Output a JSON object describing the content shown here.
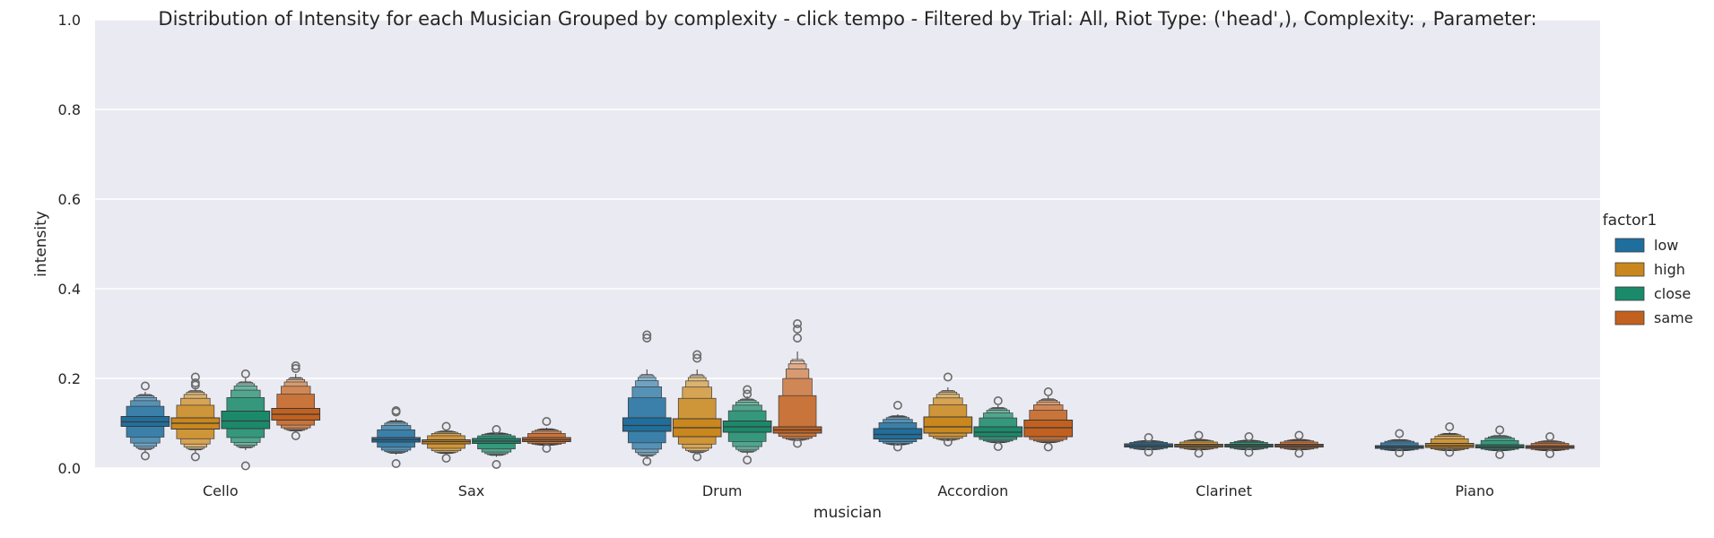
{
  "chart_data": {
    "type": "boxen",
    "title": "Distribution of Intensity for each Musician Grouped by complexity - click tempo - Filtered by Trial: All, Riot Type: ('head',), Complexity: , Parameter:",
    "xlabel": "musician",
    "ylabel": "intensity",
    "ylim": [
      0,
      1.0
    ],
    "yticks": [
      0.0,
      0.2,
      0.4,
      0.6,
      0.8,
      1.0
    ],
    "ytick_labels": [
      "0.0",
      "0.2",
      "0.4",
      "0.6",
      "0.8",
      "1.0"
    ],
    "grid": true,
    "legend_title": "factor1",
    "legend_position": "right",
    "categories": [
      "Cello",
      "Sax",
      "Drum",
      "Accordion",
      "Clarinet",
      "Piano"
    ],
    "series": [
      {
        "name": "low",
        "color": "#1f6f9e",
        "stats": [
          {
            "median": 0.103,
            "q1": 0.093,
            "q3": 0.115,
            "min": 0.035,
            "max": 0.17,
            "outliers": [
              0.183,
              0.027
            ]
          },
          {
            "median": 0.063,
            "q1": 0.058,
            "q3": 0.068,
            "min": 0.03,
            "max": 0.11,
            "outliers": [
              0.125,
              0.128,
              0.01
            ]
          },
          {
            "median": 0.095,
            "q1": 0.082,
            "q3": 0.112,
            "min": 0.02,
            "max": 0.22,
            "outliers": [
              0.29,
              0.297,
              0.015
            ]
          },
          {
            "median": 0.075,
            "q1": 0.065,
            "q3": 0.088,
            "min": 0.05,
            "max": 0.12,
            "outliers": [
              0.14,
              0.047
            ]
          },
          {
            "median": 0.05,
            "q1": 0.047,
            "q3": 0.054,
            "min": 0.04,
            "max": 0.062,
            "outliers": [
              0.068,
              0.036
            ]
          },
          {
            "median": 0.047,
            "q1": 0.044,
            "q3": 0.05,
            "min": 0.038,
            "max": 0.065,
            "outliers": [
              0.077,
              0.034
            ]
          }
        ]
      },
      {
        "name": "high",
        "color": "#c9871e",
        "stats": [
          {
            "median": 0.1,
            "q1": 0.087,
            "q3": 0.112,
            "min": 0.035,
            "max": 0.18,
            "outliers": [
              0.203,
              0.19,
              0.185,
              0.025
            ]
          },
          {
            "median": 0.059,
            "q1": 0.054,
            "q3": 0.063,
            "min": 0.03,
            "max": 0.085,
            "outliers": [
              0.093,
              0.022
            ]
          },
          {
            "median": 0.09,
            "q1": 0.07,
            "q3": 0.11,
            "min": 0.03,
            "max": 0.22,
            "outliers": [
              0.253,
              0.245,
              0.025
            ]
          },
          {
            "median": 0.092,
            "q1": 0.078,
            "q3": 0.114,
            "min": 0.06,
            "max": 0.18,
            "outliers": [
              0.203,
              0.058
            ]
          },
          {
            "median": 0.05,
            "q1": 0.047,
            "q3": 0.053,
            "min": 0.04,
            "max": 0.065,
            "outliers": [
              0.073,
              0.033
            ]
          },
          {
            "median": 0.05,
            "q1": 0.046,
            "q3": 0.055,
            "min": 0.038,
            "max": 0.08,
            "outliers": [
              0.092,
              0.035
            ]
          }
        ]
      },
      {
        "name": "close",
        "color": "#1a8a6a",
        "stats": [
          {
            "median": 0.105,
            "q1": 0.088,
            "q3": 0.127,
            "min": 0.04,
            "max": 0.2,
            "outliers": [
              0.21,
              0.005
            ]
          },
          {
            "median": 0.06,
            "q1": 0.055,
            "q3": 0.066,
            "min": 0.025,
            "max": 0.08,
            "outliers": [
              0.086,
              0.008
            ]
          },
          {
            "median": 0.092,
            "q1": 0.08,
            "q3": 0.105,
            "min": 0.03,
            "max": 0.16,
            "outliers": [
              0.175,
              0.165,
              0.018
            ]
          },
          {
            "median": 0.08,
            "q1": 0.07,
            "q3": 0.092,
            "min": 0.055,
            "max": 0.14,
            "outliers": [
              0.15,
              0.048
            ]
          },
          {
            "median": 0.05,
            "q1": 0.047,
            "q3": 0.053,
            "min": 0.04,
            "max": 0.063,
            "outliers": [
              0.07,
              0.035
            ]
          },
          {
            "median": 0.048,
            "q1": 0.045,
            "q3": 0.052,
            "min": 0.038,
            "max": 0.075,
            "outliers": [
              0.085,
              0.03
            ]
          }
        ]
      },
      {
        "name": "same",
        "color": "#c2611f",
        "stats": [
          {
            "median": 0.12,
            "q1": 0.107,
            "q3": 0.133,
            "min": 0.08,
            "max": 0.21,
            "outliers": [
              0.228,
              0.222,
              0.072
            ]
          },
          {
            "median": 0.063,
            "q1": 0.059,
            "q3": 0.068,
            "min": 0.05,
            "max": 0.09,
            "outliers": [
              0.104,
              0.044
            ]
          },
          {
            "median": 0.085,
            "q1": 0.078,
            "q3": 0.092,
            "min": 0.06,
            "max": 0.26,
            "outliers": [
              0.322,
              0.31,
              0.29,
              0.055
            ]
          },
          {
            "median": 0.09,
            "q1": 0.07,
            "q3": 0.107,
            "min": 0.055,
            "max": 0.16,
            "outliers": [
              0.17,
              0.047
            ]
          },
          {
            "median": 0.05,
            "q1": 0.047,
            "q3": 0.053,
            "min": 0.04,
            "max": 0.065,
            "outliers": [
              0.073,
              0.033
            ]
          },
          {
            "median": 0.047,
            "q1": 0.044,
            "q3": 0.05,
            "min": 0.038,
            "max": 0.062,
            "outliers": [
              0.07,
              0.032
            ]
          }
        ]
      }
    ]
  }
}
